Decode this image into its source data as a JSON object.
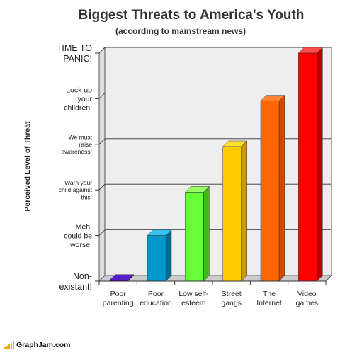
{
  "chart_data": {
    "type": "bar",
    "title": "Biggest Threats to America's Youth",
    "subtitle": "(according to mainstream news)",
    "ylabel": "Perceived Level of Threat",
    "xlabel": "",
    "ylim": [
      0,
      5
    ],
    "y_ticks": [
      {
        "value": 0,
        "lines": [
          "Non-",
          "existant!"
        ],
        "size": "large"
      },
      {
        "value": 1,
        "lines": [
          "Meh,",
          "could be",
          "worse."
        ],
        "size": "medium"
      },
      {
        "value": 2,
        "lines": [
          "Warn your",
          "child against",
          "this!"
        ],
        "size": "small"
      },
      {
        "value": 3,
        "lines": [
          "We must",
          "raise",
          "awareness!"
        ],
        "size": "small"
      },
      {
        "value": 4,
        "lines": [
          "Lock up",
          "your",
          "children!"
        ],
        "size": "medium"
      },
      {
        "value": 5,
        "lines": [
          "TIME TO",
          "PANIC!"
        ],
        "size": "large"
      }
    ],
    "categories": [
      {
        "lines": [
          "Poor",
          "parenting"
        ]
      },
      {
        "lines": [
          "Poor",
          "education"
        ]
      },
      {
        "lines": [
          "Low self-",
          "esteem"
        ]
      },
      {
        "lines": [
          "Street",
          "gangs"
        ]
      },
      {
        "lines": [
          "The",
          "Internet"
        ]
      },
      {
        "lines": [
          "Video",
          "games"
        ]
      }
    ],
    "values": [
      0.02,
      1.0,
      1.95,
      2.95,
      3.95,
      5.0
    ],
    "colors": [
      {
        "front": "#3d0099",
        "side": "#2a006b",
        "top": "#5a1fcc"
      },
      {
        "front": "#0099cc",
        "side": "#006b8f",
        "top": "#33c4f0"
      },
      {
        "front": "#66ff33",
        "side": "#47b324",
        "top": "#99ff66"
      },
      {
        "front": "#ffcc00",
        "side": "#cc9900",
        "top": "#ffe033"
      },
      {
        "front": "#ff6600",
        "side": "#cc4d00",
        "top": "#ff8533"
      },
      {
        "front": "#ff0000",
        "side": "#b30000",
        "top": "#ff4d4d"
      }
    ],
    "grid": true,
    "background": "#eeeeee"
  },
  "footer": {
    "brand": "GraphJam.com"
  }
}
